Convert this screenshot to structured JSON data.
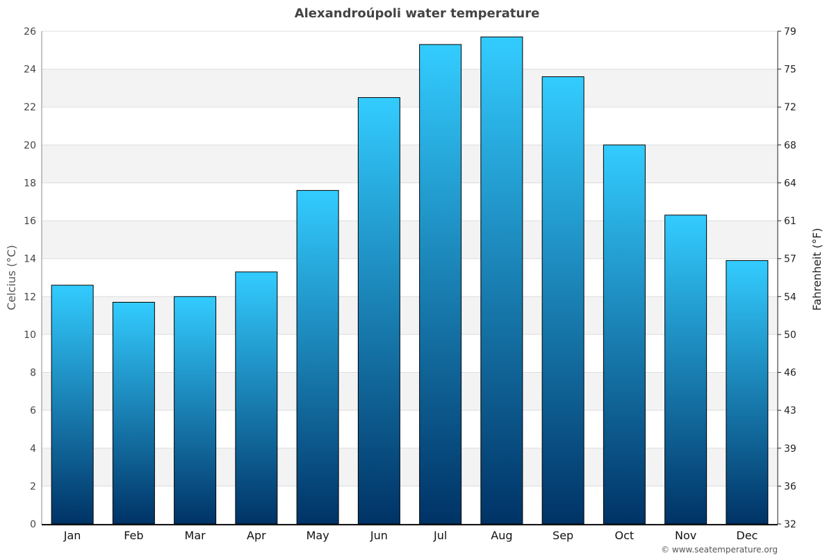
{
  "chart_data": {
    "type": "bar",
    "title": "Alexandroúpoli water temperature",
    "categories": [
      "Jan",
      "Feb",
      "Mar",
      "Apr",
      "May",
      "Jun",
      "Jul",
      "Aug",
      "Sep",
      "Oct",
      "Nov",
      "Dec"
    ],
    "values": [
      12.6,
      11.7,
      12.0,
      13.3,
      17.6,
      22.5,
      25.3,
      25.7,
      23.6,
      20.0,
      16.3,
      13.9
    ],
    "ylabel": "Celcius (°C)",
    "y2label": "Fahrenheit (°F)",
    "ylim": [
      0,
      26
    ],
    "yticks": [
      "0",
      "2",
      "4",
      "6",
      "8",
      "10",
      "12",
      "14",
      "16",
      "18",
      "20",
      "22",
      "24",
      "26"
    ],
    "y2ticks": [
      "32",
      "36",
      "39",
      "43",
      "46",
      "50",
      "54",
      "57",
      "61",
      "64",
      "68",
      "72",
      "75",
      "79"
    ],
    "grid": true,
    "bar_gradient": [
      "#33ccff",
      "#003366"
    ],
    "band_color": "#f3f3f3"
  },
  "footer": {
    "credit": "© www.seatemperature.org"
  }
}
